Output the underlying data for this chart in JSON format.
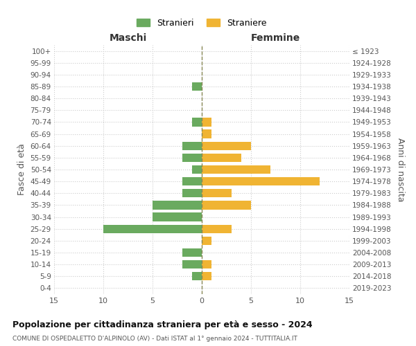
{
  "age_groups_bottom_to_top": [
    "0-4",
    "5-9",
    "10-14",
    "15-19",
    "20-24",
    "25-29",
    "30-34",
    "35-39",
    "40-44",
    "45-49",
    "50-54",
    "55-59",
    "60-64",
    "65-69",
    "70-74",
    "75-79",
    "80-84",
    "85-89",
    "90-94",
    "95-99",
    "100+"
  ],
  "birth_years_bottom_to_top": [
    "2019-2023",
    "2014-2018",
    "2009-2013",
    "2004-2008",
    "1999-2003",
    "1994-1998",
    "1989-1993",
    "1984-1988",
    "1979-1983",
    "1974-1978",
    "1969-1973",
    "1964-1968",
    "1959-1963",
    "1954-1958",
    "1949-1953",
    "1944-1948",
    "1939-1943",
    "1934-1938",
    "1929-1933",
    "1924-1928",
    "≤ 1923"
  ],
  "males_bottom_to_top": [
    0,
    1,
    2,
    2,
    0,
    10,
    5,
    5,
    2,
    2,
    1,
    2,
    2,
    0,
    1,
    0,
    0,
    1,
    0,
    0,
    0
  ],
  "females_bottom_to_top": [
    0,
    1,
    1,
    0,
    1,
    3,
    0,
    5,
    3,
    12,
    7,
    4,
    5,
    1,
    1,
    0,
    0,
    0,
    0,
    0,
    0
  ],
  "male_color": "#6aaa5f",
  "female_color": "#f0b433",
  "male_label": "Stranieri",
  "female_label": "Straniere",
  "title": "Popolazione per cittadinanza straniera per età e sesso - 2024",
  "subtitle": "COMUNE DI OSPEDALETTO D'ALPINOLO (AV) - Dati ISTAT al 1° gennaio 2024 - TUTTITALIA.IT",
  "xlabel_left": "Maschi",
  "xlabel_right": "Femmine",
  "ylabel_left": "Fasce di età",
  "ylabel_right": "Anni di nascita",
  "xlim": 15,
  "background_color": "#ffffff",
  "grid_color": "#cccccc",
  "center_line_color": "#888855"
}
